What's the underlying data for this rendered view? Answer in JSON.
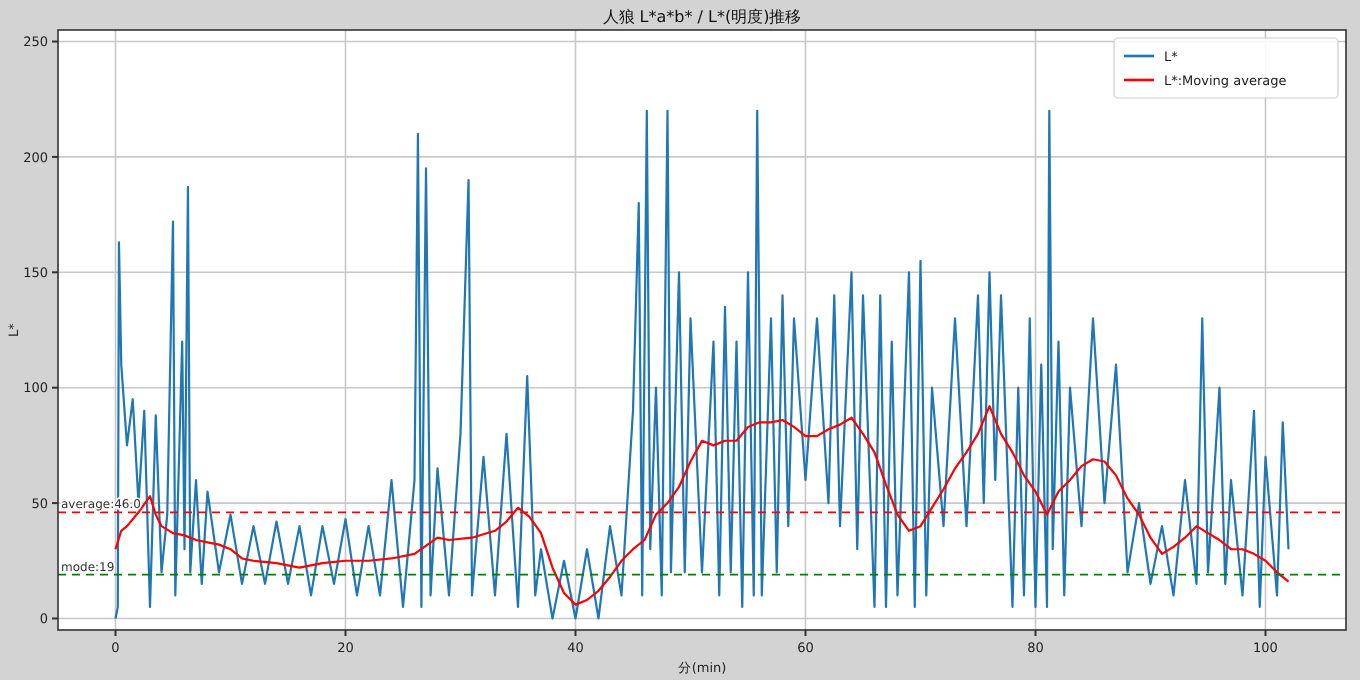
{
  "chart_data": {
    "type": "line",
    "title": "人狼 L*a*b* / L*(明度)推移",
    "xlabel": "分(min)",
    "ylabel": "L*",
    "xlim": [
      -5,
      107
    ],
    "ylim": [
      -5,
      255
    ],
    "xticks": [
      0,
      20,
      40,
      60,
      80,
      100
    ],
    "yticks": [
      0,
      50,
      100,
      150,
      200,
      250
    ],
    "grid": true,
    "legend": "top right",
    "line_style": "solid",
    "marker": "none",
    "series": [
      {
        "name": "L*",
        "color": "#1f77b4",
        "x": [
          0,
          0.2,
          0.3,
          0.5,
          1,
          1.5,
          2,
          2.5,
          3,
          3.5,
          4,
          4.5,
          5,
          5.2,
          5.8,
          6,
          6.3,
          6.5,
          7,
          7.5,
          8,
          9,
          10,
          11,
          12,
          13,
          14,
          15,
          16,
          17,
          18,
          19,
          20,
          21,
          22,
          23,
          24,
          25,
          26,
          26.3,
          26.6,
          27,
          27.4,
          28,
          29,
          30,
          30.7,
          31,
          32,
          33,
          34,
          35,
          35.8,
          36.5,
          37,
          38,
          39,
          40,
          41,
          42,
          43,
          44,
          45,
          45.5,
          45.8,
          46.2,
          46.5,
          47,
          47.5,
          48,
          48.3,
          49,
          49.5,
          50,
          51,
          52,
          52.5,
          53,
          53.5,
          54,
          54.5,
          55,
          55.5,
          55.8,
          56.2,
          57,
          57.5,
          58,
          58.5,
          59,
          60,
          61,
          62,
          62.5,
          63,
          64,
          64.5,
          65,
          66,
          66.5,
          67,
          67.5,
          68,
          69,
          69.5,
          70,
          70.5,
          71,
          72,
          73,
          74,
          75,
          75.5,
          76,
          76.5,
          77,
          78,
          78.5,
          79,
          79.5,
          80,
          80.5,
          81,
          81.2,
          81.5,
          82,
          82.5,
          83,
          84,
          85,
          86,
          87,
          88,
          89,
          90,
          91,
          92,
          93,
          94,
          94.5,
          95,
          96,
          96.5,
          97,
          98,
          99,
          99.5,
          100,
          101,
          101.5,
          102
        ],
        "values": [
          0,
          5,
          163,
          110,
          75,
          95,
          50,
          90,
          5,
          88,
          20,
          45,
          172,
          10,
          120,
          30,
          187,
          20,
          60,
          15,
          55,
          20,
          45,
          15,
          40,
          15,
          42,
          15,
          40,
          10,
          40,
          15,
          43,
          10,
          40,
          10,
          60,
          5,
          60,
          210,
          5,
          195,
          10,
          65,
          10,
          80,
          190,
          10,
          70,
          10,
          80,
          5,
          105,
          10,
          30,
          0,
          25,
          0,
          30,
          0,
          40,
          10,
          90,
          180,
          10,
          220,
          30,
          100,
          10,
          220,
          20,
          150,
          20,
          130,
          20,
          120,
          10,
          135,
          20,
          120,
          5,
          150,
          10,
          220,
          10,
          130,
          20,
          140,
          40,
          130,
          60,
          130,
          50,
          140,
          40,
          150,
          30,
          140,
          5,
          140,
          5,
          120,
          10,
          150,
          5,
          155,
          10,
          100,
          40,
          130,
          40,
          140,
          50,
          150,
          60,
          140,
          5,
          100,
          10,
          130,
          5,
          110,
          5,
          220,
          30,
          120,
          10,
          100,
          40,
          130,
          50,
          110,
          20,
          50,
          15,
          40,
          10,
          60,
          15,
          130,
          20,
          100,
          15,
          60,
          10,
          90,
          5,
          70,
          10,
          85,
          30
        ]
      },
      {
        "name": "L*:Moving average",
        "color": "#ff0000",
        "x": [
          0,
          0.5,
          1,
          2,
          3,
          3.5,
          4,
          5,
          6,
          7,
          8,
          9,
          10,
          11,
          12,
          14,
          16,
          18,
          20,
          22,
          24,
          26,
          28,
          29,
          31,
          33,
          34,
          35,
          36,
          37,
          38,
          39,
          40,
          41,
          42,
          43,
          44,
          45,
          46,
          47,
          48,
          49,
          50,
          51,
          52,
          53,
          54,
          55,
          56,
          57,
          58,
          59,
          60,
          61,
          62,
          63,
          64,
          65,
          66,
          67,
          68,
          69,
          70,
          71,
          72,
          73,
          74,
          75,
          76,
          77,
          78,
          79,
          80,
          81,
          82,
          83,
          84,
          85,
          86,
          87,
          88,
          89,
          90,
          91,
          92,
          93,
          94,
          95,
          96,
          97,
          98,
          99,
          100,
          101,
          102
        ],
        "values": [
          30,
          38,
          40,
          46,
          53,
          45,
          40,
          37,
          36,
          34,
          33,
          32,
          30,
          26,
          25,
          24,
          22,
          24,
          25,
          25,
          26,
          28,
          35,
          34,
          35,
          38,
          42,
          48,
          44,
          37,
          22,
          11,
          6,
          8,
          12,
          18,
          25,
          30,
          34,
          45,
          50,
          57,
          68,
          77,
          75,
          77,
          77,
          83,
          85,
          85,
          86,
          83,
          79,
          79,
          82,
          84,
          87,
          80,
          72,
          58,
          45,
          38,
          40,
          48,
          56,
          65,
          72,
          80,
          92,
          80,
          72,
          62,
          55,
          45,
          55,
          60,
          66,
          69,
          68,
          62,
          52,
          45,
          35,
          28,
          31,
          35,
          40,
          37,
          34,
          30,
          30,
          28,
          25,
          20,
          16
        ]
      }
    ],
    "ref_lines": [
      {
        "axis": "y",
        "value": 46,
        "label": "average:46.0",
        "color": "#ff0000",
        "line_style": "dashed"
      },
      {
        "axis": "y",
        "value": 19,
        "label": "mode:19",
        "color": "#008000",
        "line_style": "dashed"
      }
    ]
  }
}
